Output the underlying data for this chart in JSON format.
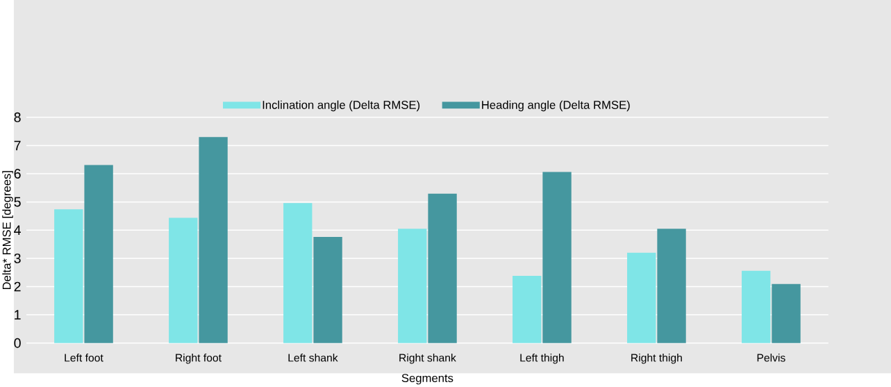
{
  "chart_data": {
    "type": "bar",
    "xlabel": "Segments",
    "ylabel": "Delta* RMSE [degrees]",
    "categories": [
      "Left foot",
      "Right foot",
      "Left shank",
      "Right shank",
      "Left thigh",
      "Right thigh",
      "Pelvis"
    ],
    "series": [
      {
        "name": "Inclination angle (Delta RMSE)",
        "color": "#7fe5e7",
        "values": [
          4.74,
          4.44,
          4.96,
          4.05,
          2.38,
          3.2,
          2.56
        ]
      },
      {
        "name": "Heading angle (Delta RMSE)",
        "color": "#45979f",
        "values": [
          6.31,
          7.3,
          3.76,
          5.29,
          6.06,
          4.05,
          2.09
        ]
      }
    ],
    "ylim": [
      0,
      8
    ],
    "yticks": [
      0,
      1,
      2,
      3,
      4,
      5,
      6,
      7,
      8
    ],
    "grid": "y",
    "legend": "top"
  }
}
